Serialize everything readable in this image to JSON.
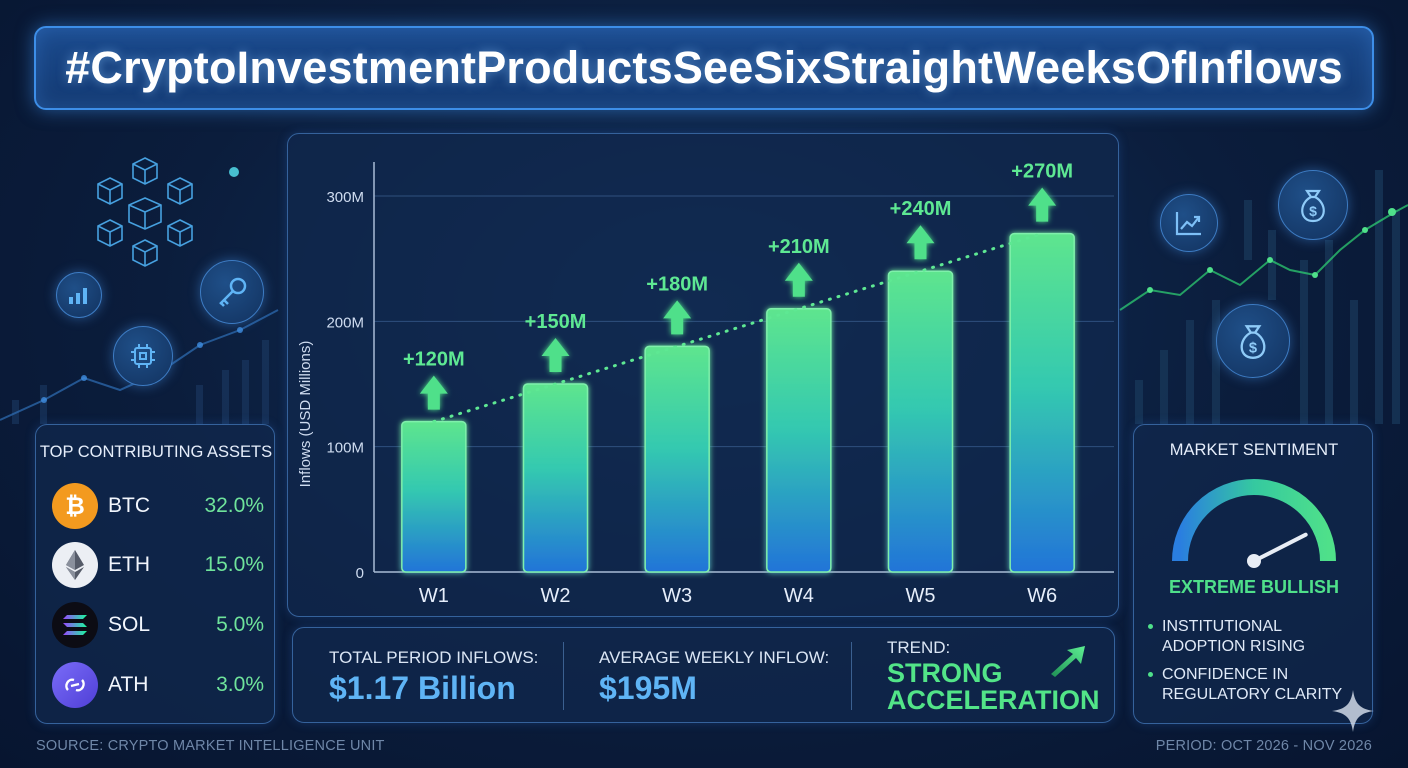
{
  "title": "#CryptoInvestmentProductsSeeSixStraightWeeksOfInflows",
  "chart_data": {
    "type": "bar",
    "categories": [
      "W1",
      "W2",
      "W3",
      "W4",
      "W5",
      "W6"
    ],
    "values": [
      120,
      150,
      180,
      210,
      240,
      270
    ],
    "data_labels": [
      "+120M",
      "+150M",
      "+180M",
      "+210M",
      "+240M",
      "+270M"
    ],
    "ylabel": "Inflows (USD Millions)",
    "ylim": [
      0,
      300
    ],
    "yticks": [
      0,
      100,
      200,
      300
    ],
    "ytick_labels": [
      "0",
      "100M",
      "200M",
      "300M"
    ],
    "trendline": "dotted",
    "grid": true
  },
  "stats": {
    "total_label": "TOTAL PERIOD INFLOWS:",
    "total_value": "$1.17 Billion",
    "average_label": "AVERAGE WEEKLY INFLOW:",
    "average_value": "$195M",
    "trend_label": "TREND:",
    "trend_value_line1": "STRONG",
    "trend_value_line2": "ACCELERATION"
  },
  "assets": {
    "title": "TOP CONTRIBUTING ASSETS",
    "items": [
      {
        "symbol": "BTC",
        "percent": "32.0%",
        "color": "#f39a1f",
        "icon": "bitcoin-icon"
      },
      {
        "symbol": "ETH",
        "percent": "15.0%",
        "color": "#eceff4",
        "icon": "ethereum-icon"
      },
      {
        "symbol": "SOL",
        "percent": "5.0%",
        "color": "#0c0c14",
        "icon": "solana-icon"
      },
      {
        "symbol": "ATH",
        "percent": "3.0%",
        "color": "#6a5cf0",
        "icon": "aethir-icon"
      }
    ]
  },
  "sentiment": {
    "title": "MARKET SENTIMENT",
    "value": "EXTREME BULLISH",
    "level": 0.85,
    "bullets": [
      {
        "line1": "INSTITUTIONAL",
        "line2": "ADOPTION RISING"
      },
      {
        "line1": "CONFIDENCE IN",
        "line2": "REGULATORY CLARITY"
      }
    ]
  },
  "footer": {
    "source": "SOURCE: CRYPTO MARKET INTELLIGENCE UNIT",
    "period": "PERIOD: OCT 2026 - NOV 2026"
  },
  "colors": {
    "accent_green": "#4fe08a",
    "accent_blue": "#3d8ee8",
    "value_blue": "#5fb4f5"
  }
}
